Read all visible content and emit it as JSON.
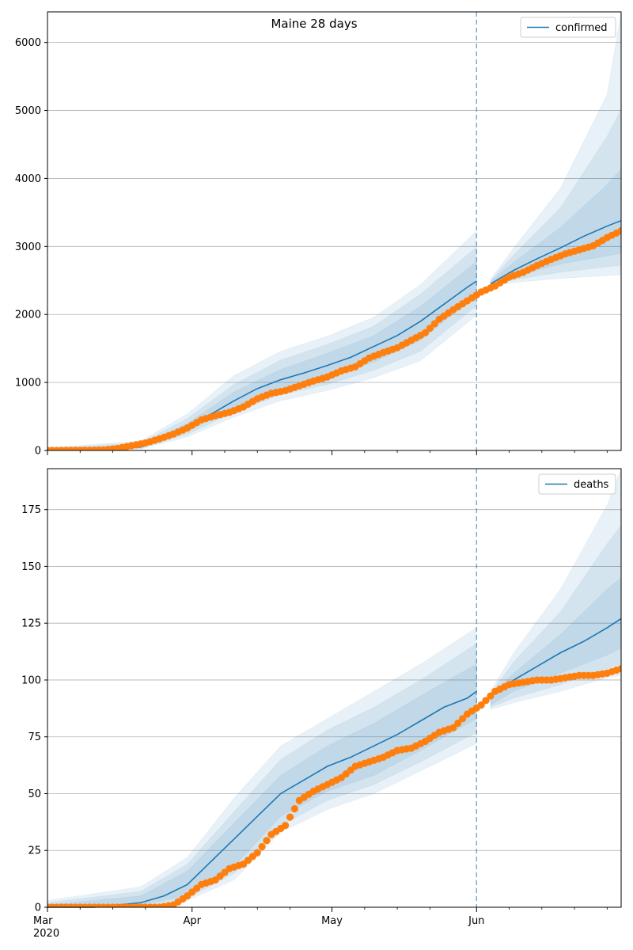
{
  "chart_data": [
    {
      "type": "line",
      "title": "Maine 28 days",
      "legend": "top-right",
      "grid": "y",
      "ylim": [
        0,
        6450
      ],
      "yticks": [
        0,
        1000,
        2000,
        3000,
        4000,
        5000,
        6000
      ],
      "forecast_start": "Jun",
      "series": [
        {
          "name": "confirmed",
          "kind": "model-median",
          "x": [
            0,
            10,
            20,
            25,
            30,
            35,
            40,
            45,
            50,
            55,
            60,
            65,
            70,
            75,
            80,
            85,
            90,
            92,
            95,
            100,
            105,
            110,
            115,
            120,
            123
          ],
          "values": [
            10,
            10,
            50,
            170,
            330,
            530,
            730,
            910,
            1040,
            1140,
            1250,
            1370,
            1530,
            1690,
            1900,
            2150,
            2400,
            2490,
            2450,
            2650,
            2820,
            2980,
            3150,
            3300,
            3380
          ]
        },
        {
          "kind": "observed",
          "x": [
            0,
            3,
            6,
            9,
            12,
            15,
            18,
            21,
            24,
            27,
            30,
            33,
            36,
            39,
            42,
            45,
            48,
            51,
            54,
            57,
            60,
            63,
            66,
            69,
            72,
            75,
            78,
            81,
            84,
            87,
            90,
            93,
            96,
            99,
            102,
            105,
            108,
            111,
            114,
            117,
            120,
            123
          ],
          "values": [
            1,
            1,
            2,
            3,
            7,
            30,
            70,
            110,
            170,
            240,
            330,
            450,
            510,
            560,
            640,
            760,
            840,
            880,
            950,
            1020,
            1080,
            1170,
            1230,
            1360,
            1440,
            1510,
            1620,
            1730,
            1930,
            2070,
            2200,
            2330,
            2420,
            2550,
            2620,
            2720,
            2810,
            2890,
            2950,
            3010,
            3130,
            3230
          ]
        }
      ],
      "bands": [
        {
          "x": [
            0,
            20,
            30,
            40,
            50,
            60,
            70,
            80,
            92,
            95,
            100,
            110,
            120,
            123
          ],
          "lower": [
            0,
            20,
            200,
            490,
            730,
            880,
            1070,
            1320,
            1990,
            2420,
            2470,
            2530,
            2570,
            2580
          ],
          "upper": [
            40,
            140,
            540,
            1100,
            1460,
            1680,
            1960,
            2440,
            3230,
            2520,
            2980,
            3860,
            5240,
            6450
          ]
        },
        {
          "x": [
            0,
            20,
            30,
            40,
            50,
            60,
            70,
            80,
            92,
            95,
            100,
            110,
            120,
            123
          ],
          "lower": [
            0,
            30,
            240,
            560,
            820,
            970,
            1180,
            1460,
            2130,
            2430,
            2510,
            2620,
            2700,
            2720
          ],
          "upper": [
            30,
            110,
            470,
            970,
            1330,
            1560,
            1830,
            2300,
            2990,
            2500,
            2880,
            3570,
            4620,
            5020
          ]
        },
        {
          "x": [
            0,
            20,
            30,
            40,
            50,
            60,
            70,
            80,
            92,
            95,
            100,
            110,
            120,
            123
          ],
          "lower": [
            0,
            40,
            280,
            630,
            920,
            1060,
            1300,
            1620,
            2290,
            2440,
            2560,
            2740,
            2860,
            2900
          ],
          "upper": [
            20,
            80,
            400,
            860,
            1190,
            1430,
            1690,
            2120,
            2780,
            2480,
            2770,
            3280,
            3910,
            4140
          ]
        }
      ]
    },
    {
      "type": "line",
      "legend": "top-right",
      "grid": "y",
      "ylim": [
        0,
        193
      ],
      "yticks": [
        0,
        25,
        50,
        75,
        100,
        125,
        150,
        175
      ],
      "xticks": [
        "Mar\n2020",
        "Apr",
        "May",
        "Jun"
      ],
      "forecast_start": "Jun",
      "series": [
        {
          "name": "deaths",
          "kind": "model-median",
          "x": [
            0,
            10,
            20,
            25,
            30,
            35,
            40,
            45,
            50,
            55,
            60,
            65,
            70,
            75,
            80,
            85,
            90,
            92,
            95,
            100,
            105,
            110,
            115,
            120,
            123
          ],
          "values": [
            0,
            0,
            2,
            5,
            10,
            20,
            30,
            40,
            50,
            56,
            62,
            66,
            71,
            76,
            82,
            88,
            92,
            95,
            93,
            100,
            106,
            112,
            117,
            123,
            127
          ]
        },
        {
          "kind": "observed",
          "x": [
            0,
            3,
            6,
            9,
            12,
            15,
            18,
            21,
            24,
            27,
            30,
            33,
            36,
            39,
            42,
            45,
            48,
            51,
            54,
            57,
            60,
            63,
            66,
            69,
            72,
            75,
            78,
            81,
            84,
            87,
            90,
            93,
            96,
            99,
            102,
            105,
            108,
            111,
            114,
            117,
            120,
            123
          ],
          "values": [
            0,
            0,
            0,
            0,
            0,
            0,
            0,
            0,
            0,
            1,
            5,
            10,
            12,
            17,
            19,
            24,
            32,
            36,
            47,
            51,
            54,
            57,
            62,
            64,
            66,
            69,
            70,
            73,
            77,
            79,
            85,
            89,
            95,
            98,
            99,
            100,
            100,
            101,
            102,
            102,
            103,
            105
          ]
        }
      ],
      "bands": [
        {
          "x": [
            0,
            20,
            30,
            40,
            50,
            60,
            70,
            80,
            92,
            95,
            100,
            110,
            120,
            123
          ],
          "lower": [
            0,
            0,
            3,
            12,
            33,
            43,
            50,
            60,
            72,
            87,
            90,
            95,
            101,
            102
          ],
          "upper": [
            3,
            9,
            22,
            48,
            71,
            83,
            95,
            107,
            123,
            95,
            112,
            140,
            177,
            193
          ]
        },
        {
          "x": [
            0,
            20,
            30,
            40,
            50,
            60,
            70,
            80,
            92,
            95,
            100,
            110,
            120,
            123
          ],
          "lower": [
            0,
            0,
            4,
            15,
            36,
            47,
            54,
            64,
            77,
            88,
            92,
            98,
            105,
            107
          ],
          "upper": [
            2,
            7,
            19,
            42,
            65,
            78,
            88,
            100,
            116,
            94,
            108,
            130,
            160,
            168
          ]
        },
        {
          "x": [
            0,
            20,
            30,
            40,
            50,
            60,
            70,
            80,
            92,
            95,
            100,
            110,
            120,
            123
          ],
          "lower": [
            0,
            1,
            5,
            18,
            40,
            51,
            58,
            69,
            83,
            89,
            95,
            103,
            111,
            114
          ],
          "upper": [
            1,
            5,
            16,
            37,
            58,
            71,
            81,
            93,
            107,
            93,
            103,
            120,
            140,
            145
          ]
        }
      ]
    }
  ],
  "colors": {
    "model": "#1f77b4",
    "observed": "#ff7f0e",
    "band": "#1f77b4",
    "grid": "#b0b0b0"
  }
}
